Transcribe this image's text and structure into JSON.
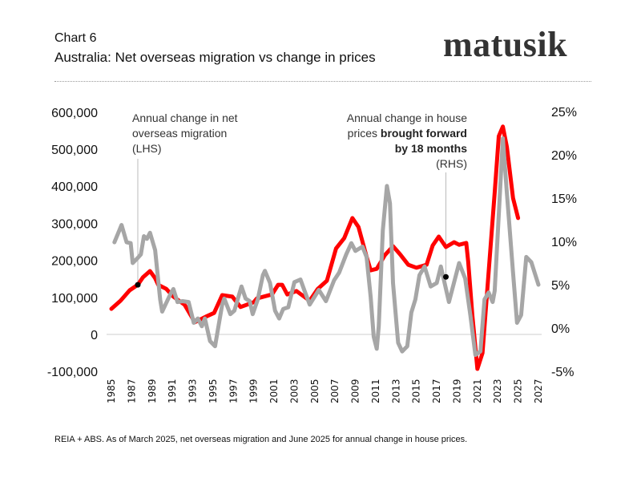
{
  "header": {
    "title": "Chart 6",
    "subtitle": "Australia: Net overseas migration vs change in prices",
    "logo": "matusik"
  },
  "footer": {
    "source": "REIA + ABS. As of March 2025, net overseas migration and June 2025 for annual change in house prices."
  },
  "chart_data": {
    "type": "line",
    "title": "Australia: Net overseas migration vs change in prices",
    "grid": false,
    "colors": {
      "migration": "#ff0000",
      "house_prices": "#a6a6a6",
      "zero_line": "#dddddd"
    },
    "x_axis": {
      "range": [
        1985,
        2027
      ],
      "ticks": [
        "1985",
        "1987",
        "1989",
        "1991",
        "1993",
        "1995",
        "1997",
        "1999",
        "2001",
        "2003",
        "2005",
        "2007",
        "2009",
        "2011",
        "2013",
        "2015",
        "2017",
        "2019",
        "2021",
        "2023",
        "2025",
        "2027"
      ]
    },
    "y_left": {
      "range": [
        -100000,
        600000
      ],
      "ticks": [
        "600,000",
        "500,000",
        "400,000",
        "300,000",
        "200,000",
        "100,000",
        "0",
        "-100,000"
      ],
      "tick_values": [
        600000,
        500000,
        400000,
        300000,
        200000,
        100000,
        0,
        -100000
      ]
    },
    "y_right": {
      "range": [
        -5,
        25
      ],
      "ticks": [
        "25%",
        "20%",
        "15%",
        "10%",
        "5%",
        "0%",
        "-5%"
      ],
      "tick_values": [
        25,
        20,
        15,
        10,
        5,
        0,
        -5
      ]
    },
    "series": [
      {
        "axis": "left",
        "x": [
          1985.0,
          1985.9,
          1986.8,
          1987.6,
          1988.1,
          1988.8,
          1989.3,
          1989.6,
          1990.4,
          1991.1,
          1992.2,
          1993.2,
          1994.3,
          1995.1,
          1995.9,
          1996.9,
          1997.7,
          1999.0,
          1999.3,
          2000.8,
          2001.4,
          2001.8,
          2002.3,
          2003.2,
          2004.5,
          2005.3,
          2006.2,
          2007.1,
          2007.9,
          2008.7,
          2009.3,
          2010.1,
          2010.5,
          2011.1,
          2011.9,
          2012.7,
          2013.4,
          2014.2,
          2015.0,
          2016.0,
          2016.6,
          2017.2,
          2017.9,
          2018.7,
          2019.2,
          2019.9,
          2020.1,
          2020.5,
          2021.0,
          2021.5,
          2022.0,
          2022.7,
          2023.1,
          2023.5,
          2023.9,
          2024.5,
          2025.0
        ],
        "y": [
          69000,
          91000,
          119000,
          134000,
          154000,
          171000,
          152000,
          134000,
          123000,
          102000,
          80000,
          33000,
          48000,
          58000,
          106000,
          102000,
          74000,
          87000,
          97000,
          108000,
          134000,
          134000,
          108000,
          117000,
          91000,
          123000,
          145000,
          232000,
          260000,
          314000,
          290000,
          210000,
          173000,
          177000,
          214000,
          238000,
          216000,
          188000,
          180000,
          188000,
          240000,
          264000,
          236000,
          249000,
          242000,
          247000,
          195000,
          52000,
          -93000,
          -50000,
          130000,
          383000,
          535000,
          561000,
          506000,
          368000,
          314000
        ]
      },
      {
        "axis": "right",
        "x": [
          1985.3,
          1986.0,
          1986.5,
          1986.9,
          1987.1,
          1987.6,
          1987.9,
          1988.2,
          1988.5,
          1988.8,
          1989.3,
          1989.8,
          1990.0,
          1990.8,
          1991.1,
          1991.5,
          1992.0,
          1992.6,
          1993.1,
          1993.5,
          1993.9,
          1994.2,
          1994.7,
          1995.2,
          1995.9,
          1996.1,
          1996.7,
          1997.1,
          1997.8,
          1998.2,
          1998.6,
          1998.9,
          1999.4,
          1999.9,
          2000.1,
          2000.6,
          2001.1,
          2001.5,
          2001.9,
          2002.4,
          2003.0,
          2003.6,
          2004.0,
          2004.5,
          2005.4,
          2006.1,
          2006.9,
          2007.4,
          2008.1,
          2008.6,
          2009.0,
          2009.7,
          2010.1,
          2010.5,
          2010.8,
          2011.1,
          2011.3,
          2011.7,
          2012.1,
          2012.4,
          2012.7,
          2013.2,
          2013.6,
          2014.1,
          2014.5,
          2014.9,
          2015.3,
          2015.8,
          2016.4,
          2017.0,
          2017.4,
          2018.2,
          2019.2,
          2019.8,
          2020.3,
          2020.8,
          2021.3,
          2021.7,
          2022.1,
          2022.5,
          2022.7,
          2023.5,
          2023.9,
          2024.5,
          2024.9,
          2025.3,
          2025.8,
          2026.3,
          2027.0
        ],
        "y": [
          9.9,
          11.9,
          9.9,
          9.8,
          7.5,
          8.1,
          8.5,
          10.6,
          10.3,
          11.0,
          9.0,
          3.3,
          1.9,
          3.9,
          4.5,
          3.0,
          3.1,
          3.0,
          0.6,
          1.1,
          0.2,
          1.1,
          -1.5,
          -2.1,
          2.7,
          3.4,
          1.6,
          2.0,
          4.8,
          3.4,
          3.1,
          1.6,
          3.3,
          6.1,
          6.6,
          5.2,
          2.0,
          1.1,
          2.2,
          2.4,
          5.3,
          5.6,
          4.3,
          2.7,
          4.4,
          3.1,
          5.5,
          6.4,
          8.5,
          9.8,
          8.9,
          9.4,
          8.2,
          3.6,
          -1.0,
          -2.4,
          0.2,
          11.3,
          16.4,
          14.4,
          5.2,
          -1.7,
          -2.7,
          -2.1,
          1.8,
          3.3,
          6.1,
          7.1,
          4.8,
          5.2,
          7.1,
          3.0,
          7.5,
          5.7,
          1.5,
          -3.1,
          -2.7,
          3.3,
          4.1,
          3.0,
          4.3,
          21.9,
          15.6,
          6.4,
          0.6,
          1.5,
          8.2,
          7.6,
          5.0
        ]
      }
    ],
    "annotations": [
      {
        "lines": [
          {
            "text": "Annual change in net"
          },
          {
            "text": "overseas migration"
          },
          {
            "text": "(LHS)"
          }
        ],
        "anchor_x": 1987.6,
        "anchor_y": 134000,
        "axis": "left",
        "align": "left"
      },
      {
        "lines": [
          {
            "text": "Annual change in house"
          },
          {
            "text": "prices ",
            "bold_text": "brought forward"
          },
          {
            "bold_text": "by 18 months"
          },
          {
            "text": "(RHS)"
          }
        ],
        "anchor_x": 2017.9,
        "anchor_y": 5.9,
        "axis": "right",
        "align": "right"
      }
    ]
  }
}
